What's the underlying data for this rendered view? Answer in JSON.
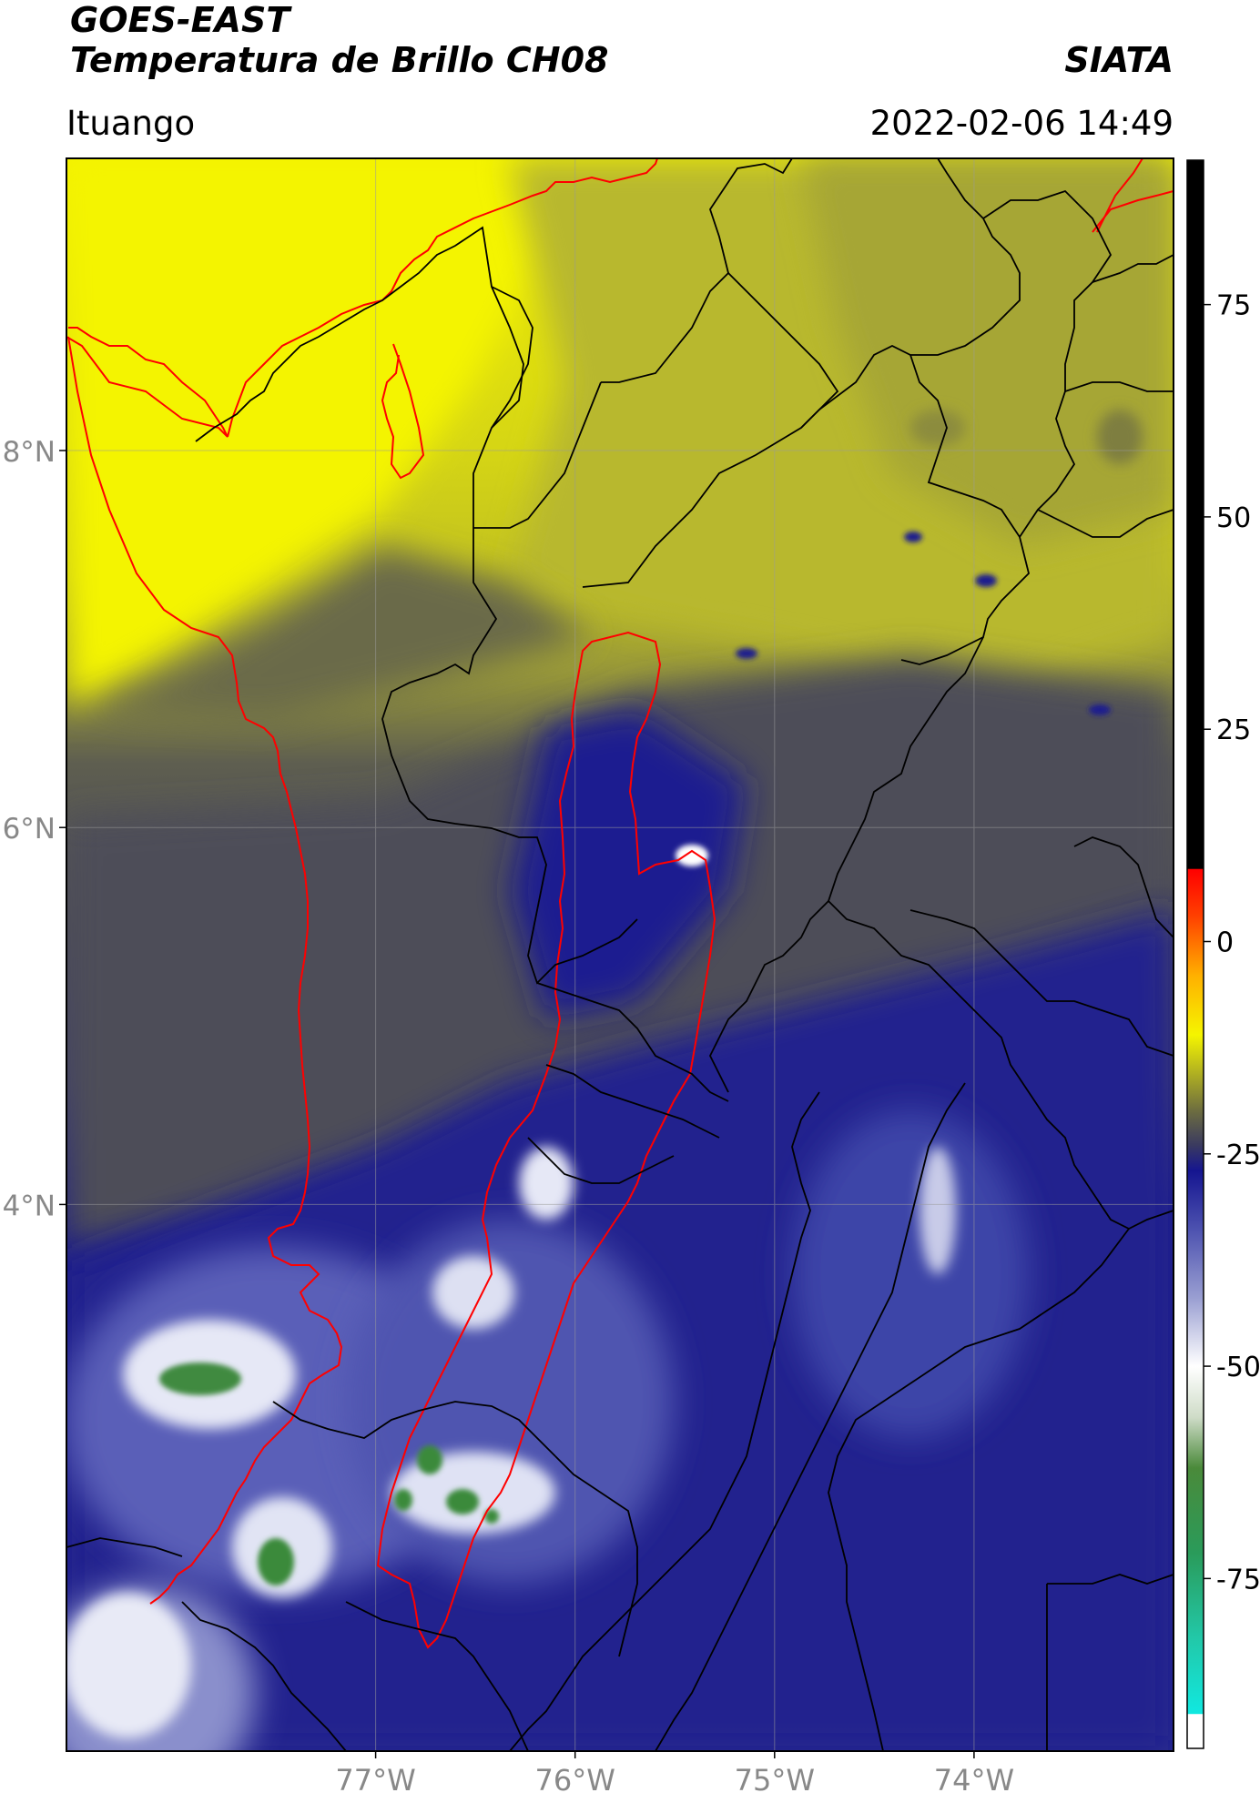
{
  "header": {
    "line1": "GOES-EAST",
    "line2": "Temperatura de Brillo CH08",
    "org": "SIATA",
    "location": "Ituango",
    "datetime": "2022-02-06 14:49"
  },
  "map": {
    "lon_range": [
      -78.55,
      -73.0
    ],
    "lat_range": [
      1.1,
      9.55
    ],
    "x_ticks": [
      {
        "value": -77,
        "label": "77°W"
      },
      {
        "value": -76,
        "label": "76°W"
      },
      {
        "value": -75,
        "label": "75°W"
      },
      {
        "value": -74,
        "label": "74°W"
      }
    ],
    "y_ticks": [
      {
        "value": 8,
        "label": "8°N"
      },
      {
        "value": 6,
        "label": "6°N"
      },
      {
        "value": 4,
        "label": "4°N"
      }
    ],
    "grid": true,
    "colors": {
      "warm_yellow": "#f2f200",
      "olive": "#b9b92a",
      "grey": "#505050",
      "deep_blue": "#1c1c8c",
      "mid_blue": "#4a4fb0",
      "light_blue": "#b8bde0",
      "white": "#ffffff",
      "green": "#3f8a3f",
      "boundary_red": "#ff0000",
      "boundary_black": "#000000"
    }
  },
  "colorbar": {
    "range": [
      -95,
      92
    ],
    "ticks": [
      {
        "value": 75,
        "label": "75"
      },
      {
        "value": 50,
        "label": "50"
      },
      {
        "value": 25,
        "label": "25"
      },
      {
        "value": 0,
        "label": "0"
      },
      {
        "value": -25,
        "label": "-25"
      },
      {
        "value": -50,
        "label": "-50"
      },
      {
        "value": -75,
        "label": "-75"
      }
    ],
    "stops": [
      {
        "v": -95,
        "c": "#ffffff"
      },
      {
        "v": -91,
        "c": "#ffffff"
      },
      {
        "v": -90.9,
        "c": "#11e8e0"
      },
      {
        "v": -82,
        "c": "#22c8a8"
      },
      {
        "v": -72,
        "c": "#2a9b5a"
      },
      {
        "v": -62,
        "c": "#4a8a3a"
      },
      {
        "v": -56,
        "c": "#cfdcc8"
      },
      {
        "v": -50,
        "c": "#ffffff"
      },
      {
        "v": -42,
        "c": "#9a9fd2"
      },
      {
        "v": -34,
        "c": "#4e53b0"
      },
      {
        "v": -27,
        "c": "#151590"
      },
      {
        "v": -24,
        "c": "#3a3a60"
      },
      {
        "v": -20,
        "c": "#6c6c40"
      },
      {
        "v": -15,
        "c": "#b8b81e"
      },
      {
        "v": -11,
        "c": "#f5f500"
      },
      {
        "v": -4,
        "c": "#ffb000"
      },
      {
        "v": 3,
        "c": "#ff4000"
      },
      {
        "v": 8.5,
        "c": "#ff0000"
      },
      {
        "v": 8.6,
        "c": "#000000"
      },
      {
        "v": 92,
        "c": "#000000"
      }
    ]
  }
}
